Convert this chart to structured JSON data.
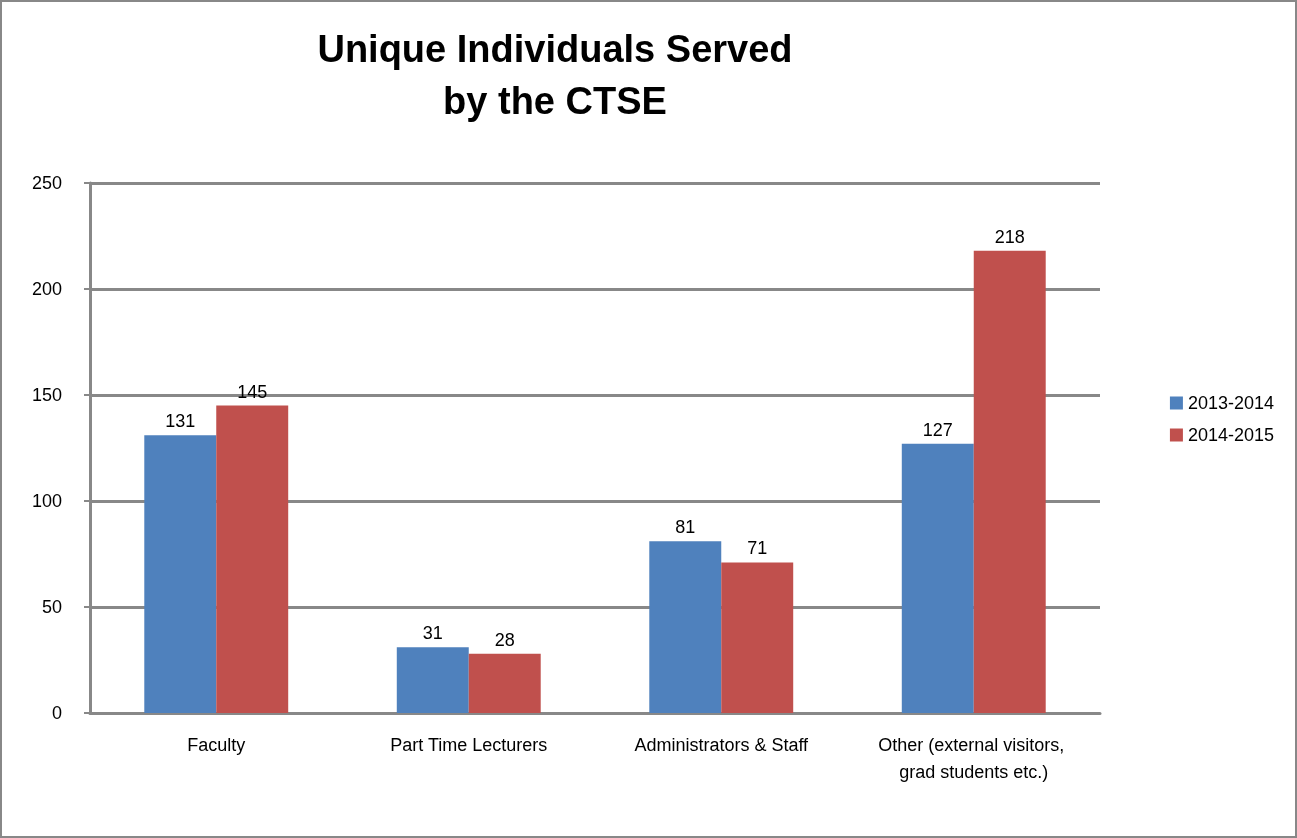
{
  "chart_data": {
    "type": "bar",
    "title": "Unique Individuals Served\nby the CTSE",
    "categories": [
      "Faculty",
      "Part Time Lecturers",
      "Administrators & Staff",
      "Other (external visitors, grad students etc.)"
    ],
    "series": [
      {
        "name": "2013-2014",
        "color": "#4f81bd",
        "values": [
          131,
          31,
          81,
          127
        ]
      },
      {
        "name": "2014-2015",
        "color": "#c0504d",
        "values": [
          145,
          28,
          71,
          218
        ]
      }
    ],
    "ylim": [
      0,
      250
    ],
    "yticks": [
      0,
      50,
      100,
      150,
      200,
      250
    ],
    "grid": "y",
    "legend": "right",
    "data_labels": true
  }
}
